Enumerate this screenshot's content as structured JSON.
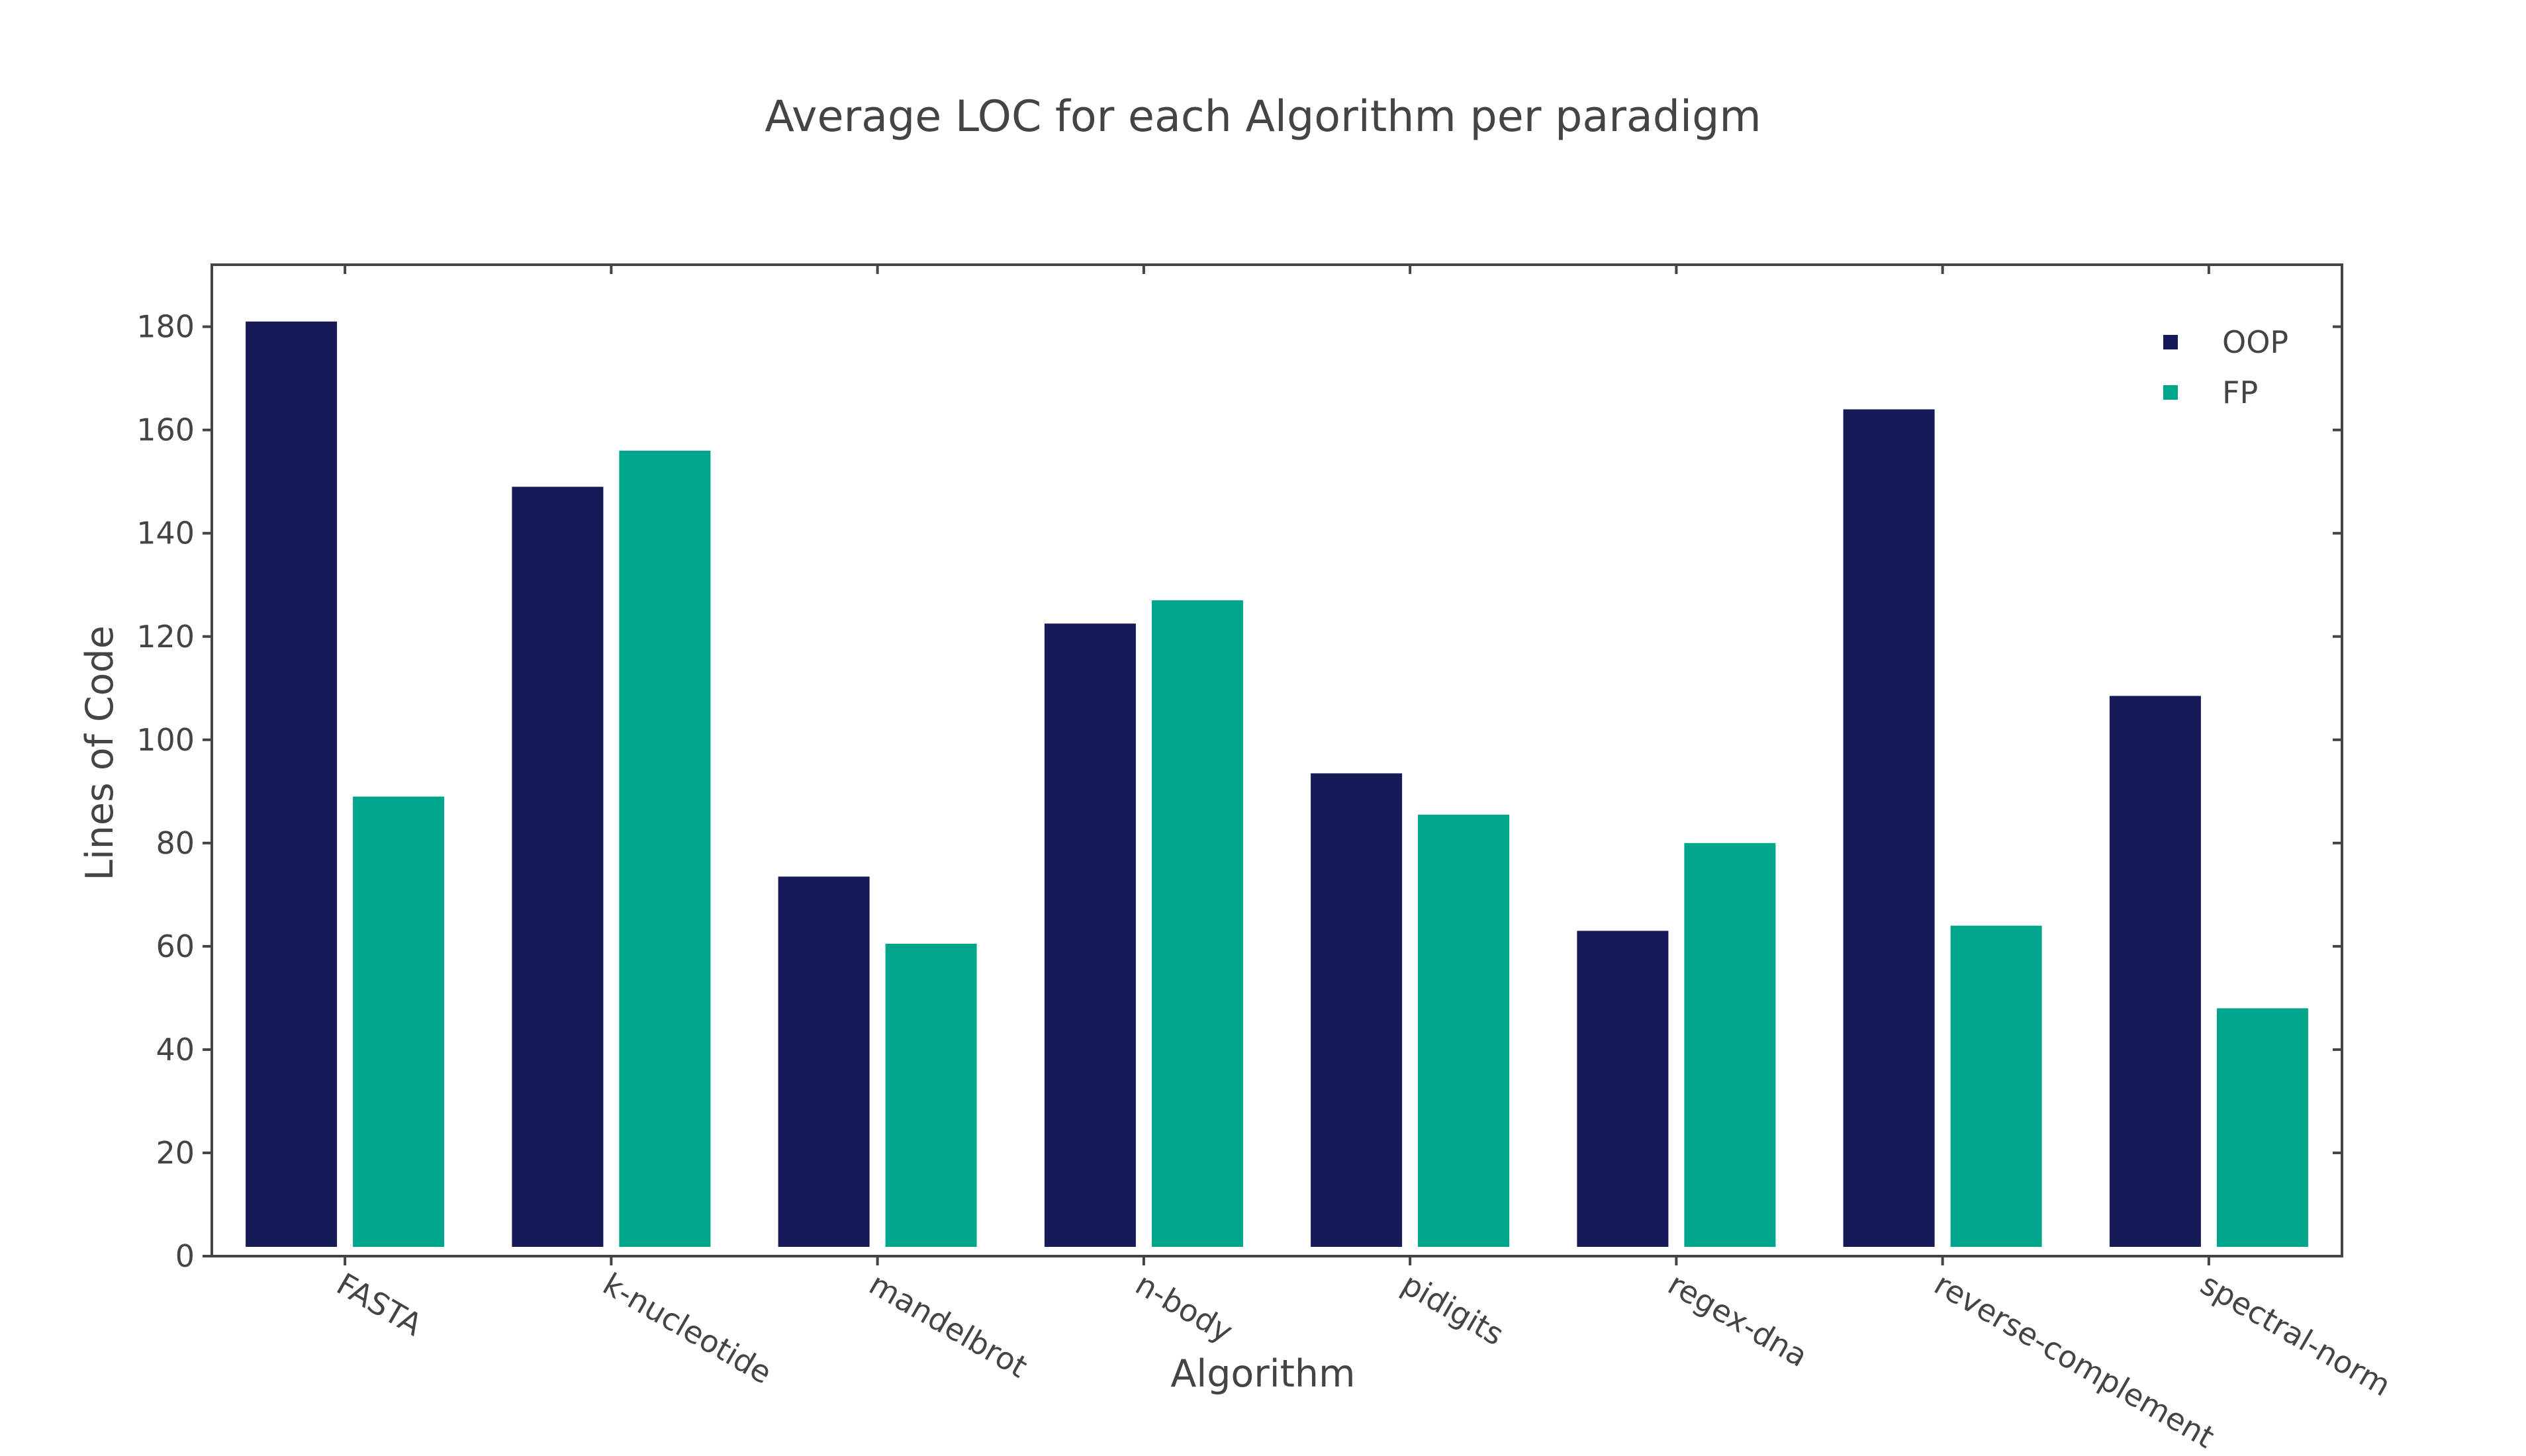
{
  "chart_data": {
    "type": "bar",
    "title": "Average LOC for each Algorithm per paradigm",
    "xlabel": "Algorithm",
    "ylabel": "Lines of Code",
    "categories": [
      "FASTA",
      "k-nucleotide",
      "mandelbrot",
      "n-body",
      "pidigits",
      "regex-dna",
      "reverse-complement",
      "spectral-norm"
    ],
    "series": [
      {
        "name": "OOP",
        "color": "#161b58",
        "values": [
          181,
          149,
          73.5,
          122.5,
          93.5,
          63,
          164,
          108.5
        ]
      },
      {
        "name": "FP",
        "color": "#00a68b",
        "values": [
          89,
          156,
          60.5,
          127,
          85.5,
          80,
          64,
          48
        ]
      }
    ],
    "ylim": [
      0,
      192
    ],
    "yticks": [
      0,
      20,
      40,
      60,
      80,
      100,
      120,
      140,
      160,
      180
    ],
    "legend_position": "top-right",
    "grid": false
  }
}
